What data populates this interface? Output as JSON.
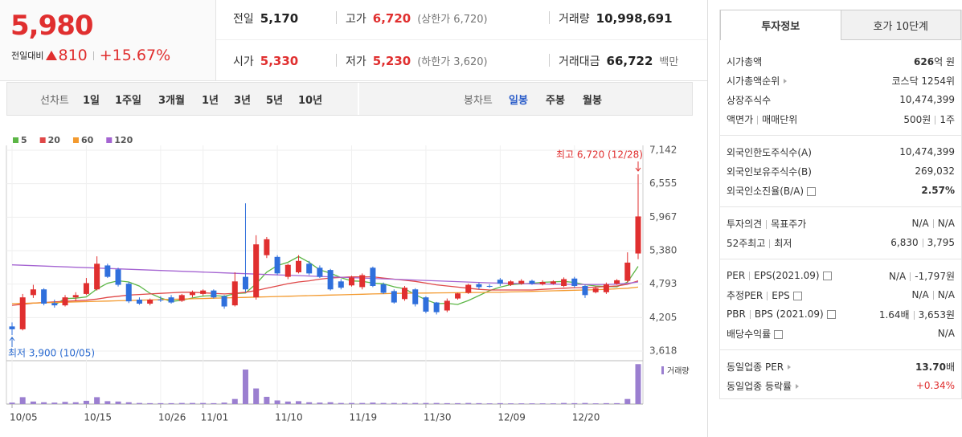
{
  "header": {
    "price": "5,980",
    "change_label": "전일대비",
    "change": "810",
    "change_pct": "+15.67%",
    "stats": [
      {
        "label": "전일",
        "value": "5,170"
      },
      {
        "label": "고가",
        "value": "6,720",
        "note": "(상한가 6,720)",
        "color": "red"
      },
      {
        "label": "거래량",
        "value": "10,998,691"
      },
      {
        "label": "시가",
        "value": "5,330",
        "color": "red"
      },
      {
        "label": "저가",
        "value": "5,230",
        "note": "(하한가 3,620)",
        "color": "red"
      },
      {
        "label": "거래대금",
        "value": "66,722",
        "note": "백만"
      }
    ]
  },
  "toolbar": {
    "line_label": "선차트",
    "periods": [
      "1일",
      "1주일",
      "3개월",
      "1년",
      "3년",
      "5년",
      "10년"
    ],
    "candle_label": "봉차트",
    "intervals": [
      "일봉",
      "주봉",
      "월봉"
    ],
    "active_interval": 0
  },
  "panel": {
    "tabs": [
      "투자정보",
      "호가 10단계"
    ],
    "active_tab": 0,
    "groups": [
      [
        {
          "label": [
            "시가총액"
          ],
          "value": [
            "626"
          ],
          "unit": "억 원",
          "bold": true
        },
        {
          "label": [
            "시가총액순위"
          ],
          "arrow": true,
          "value": [
            "코스닥 1254위"
          ]
        },
        {
          "label": [
            "상장주식수"
          ],
          "value": [
            "10,474,399"
          ]
        },
        {
          "label": [
            "액면가",
            "매매단위"
          ],
          "value": [
            "500원",
            "1주"
          ]
        }
      ],
      [
        {
          "label": [
            "외국인한도주식수(A)"
          ],
          "value": [
            "10,474,399"
          ]
        },
        {
          "label": [
            "외국인보유주식수(B)"
          ],
          "value": [
            "269,032"
          ]
        },
        {
          "label": [
            "외국인소진율(B/A)"
          ],
          "help": true,
          "value": [
            "2.57%"
          ],
          "bold": true
        }
      ],
      [
        {
          "label": [
            "투자의견",
            "목표주가"
          ],
          "value": [
            "N/A",
            "N/A"
          ]
        },
        {
          "label": [
            "52주최고",
            "최저"
          ],
          "value": [
            "6,830",
            "3,795"
          ]
        }
      ],
      [
        {
          "label": [
            "PER",
            "EPS(2021.09)"
          ],
          "help": true,
          "value": [
            "N/A",
            "-1,797원"
          ]
        },
        {
          "label": [
            "추정PER",
            "EPS"
          ],
          "help": true,
          "value": [
            "N/A",
            "N/A"
          ]
        },
        {
          "label": [
            "PBR",
            "BPS (2021.09)"
          ],
          "help": true,
          "value": [
            "1.64배",
            "3,653원"
          ]
        },
        {
          "label": [
            "배당수익률"
          ],
          "help": true,
          "value": [
            "N/A"
          ]
        }
      ],
      [
        {
          "label": [
            "동일업종 PER"
          ],
          "arrow": true,
          "value": [
            "13.70"
          ],
          "unit": "배",
          "bold": true
        },
        {
          "label": [
            "동일업종 등락률"
          ],
          "arrow": true,
          "value": [
            "+0.34%"
          ],
          "color": "red"
        }
      ]
    ]
  },
  "chart_data": {
    "type": "candlestick",
    "categories": [
      "10/05",
      null,
      null,
      null,
      null,
      null,
      null,
      "10/15",
      null,
      null,
      null,
      null,
      null,
      null,
      "10/26",
      null,
      null,
      null,
      "11/01",
      null,
      null,
      null,
      null,
      null,
      null,
      "11/10",
      null,
      null,
      null,
      null,
      null,
      null,
      "11/19",
      null,
      null,
      null,
      null,
      null,
      null,
      "11/30",
      null,
      null,
      null,
      null,
      null,
      null,
      "12/09",
      null,
      null,
      null,
      null,
      null,
      null,
      "12/20",
      null,
      null,
      null,
      null,
      null,
      null
    ],
    "open": [
      4050,
      4000,
      4600,
      4700,
      4460,
      4420,
      4560,
      4620,
      4700,
      5120,
      5050,
      4800,
      4520,
      4450,
      4520,
      4560,
      4500,
      4600,
      4620,
      4680,
      4580,
      4420,
      4920,
      4560,
      5300,
      5270,
      4920,
      5000,
      5150,
      5080,
      5040,
      4840,
      4770,
      4740,
      5080,
      4790,
      4670,
      4530,
      4700,
      4560,
      4470,
      4330,
      4540,
      4640,
      4790,
      4760,
      4870,
      4780,
      4800,
      4850,
      4790,
      4800,
      4760,
      4890,
      4760,
      4650,
      4650,
      4800,
      4850,
      5330
    ],
    "high": [
      4120,
      4620,
      4780,
      4720,
      4520,
      4600,
      4650,
      4900,
      5280,
      5150,
      5080,
      4830,
      4560,
      4540,
      4580,
      4600,
      4620,
      4680,
      4700,
      4700,
      4600,
      5000,
      6210,
      5650,
      5620,
      5300,
      5150,
      5300,
      5200,
      5120,
      5060,
      4880,
      4940,
      4980,
      5100,
      4820,
      4700,
      4760,
      4720,
      4580,
      4480,
      4540,
      4640,
      4800,
      4820,
      4790,
      4900,
      4860,
      4880,
      4870,
      4860,
      4860,
      4910,
      4920,
      4780,
      4750,
      4820,
      4880,
      5350,
      6720
    ],
    "low": [
      3900,
      3980,
      4550,
      4420,
      4380,
      4400,
      4500,
      4600,
      4680,
      4900,
      4750,
      4460,
      4430,
      4420,
      4480,
      4450,
      4480,
      4560,
      4590,
      4540,
      4360,
      4400,
      4650,
      4520,
      5250,
      4950,
      4880,
      4980,
      4950,
      4900,
      4680,
      4700,
      4750,
      4700,
      4740,
      4620,
      4450,
      4500,
      4400,
      4280,
      4260,
      4300,
      4520,
      4620,
      4700,
      4730,
      4760,
      4760,
      4780,
      4780,
      4770,
      4780,
      4740,
      4730,
      4550,
      4630,
      4620,
      4780,
      4820,
      5230
    ],
    "close": [
      4000,
      4560,
      4700,
      4450,
      4420,
      4560,
      4600,
      4810,
      5150,
      4920,
      4780,
      4490,
      4450,
      4520,
      4510,
      4470,
      4600,
      4650,
      4680,
      4560,
      4400,
      4840,
      4700,
      5490,
      5580,
      4980,
      5130,
      5200,
      4980,
      4920,
      4700,
      4730,
      4910,
      4950,
      4760,
      4640,
      4470,
      4730,
      4440,
      4310,
      4300,
      4500,
      4630,
      4780,
      4740,
      4750,
      4800,
      4840,
      4850,
      4800,
      4830,
      4840,
      4880,
      4760,
      4600,
      4720,
      4790,
      4860,
      5170,
      5980
    ],
    "volume": [
      400000,
      1900000,
      700000,
      500000,
      400000,
      600000,
      500000,
      900000,
      1900000,
      800000,
      700000,
      500000,
      300000,
      250000,
      250000,
      250000,
      300000,
      300000,
      300000,
      250000,
      400000,
      1400000,
      9500000,
      4300000,
      2000000,
      1000000,
      700000,
      800000,
      500000,
      400000,
      500000,
      300000,
      300000,
      300000,
      400000,
      300000,
      300000,
      300000,
      300000,
      300000,
      300000,
      250000,
      250000,
      300000,
      250000,
      200000,
      250000,
      200000,
      200000,
      200000,
      200000,
      200000,
      300000,
      250000,
      300000,
      200000,
      250000,
      250000,
      1400000,
      10998691
    ],
    "moving_averages": [
      {
        "name": "5",
        "color": "#5cb646",
        "values": [
          null,
          null,
          null,
          null,
          4426,
          4538,
          4546,
          4568,
          4708,
          4808,
          4852,
          4830,
          4758,
          4632,
          4550,
          4488,
          4510,
          4550,
          4582,
          4592,
          4578,
          4626,
          4636,
          4798,
          5002,
          5118,
          5176,
          5276,
          5174,
          5042,
          4986,
          4906,
          4848,
          4842,
          4810,
          4798,
          4746,
          4710,
          4608,
          4518,
          4450,
          4456,
          4436,
          4504,
          4590,
          4680,
          4740,
          4782,
          4796,
          4808,
          4824,
          4832,
          4840,
          4822,
          4782,
          4760,
          4750,
          4746,
          4828,
          5104
        ]
      },
      {
        "name": "20",
        "color": "#e04848",
        "values": [
          4420,
          4440,
          4460,
          4470,
          4480,
          4490,
          4500,
          4510,
          4530,
          4560,
          4580,
          4600,
          4610,
          4620,
          4630,
          4640,
          4650,
          4650,
          4640,
          4630,
          4620,
          4630,
          4650,
          4680,
          4720,
          4760,
          4800,
          4830,
          4850,
          4880,
          4900,
          4910,
          4920,
          4920,
          4920,
          4900,
          4880,
          4860,
          4840,
          4810,
          4780,
          4760,
          4740,
          4720,
          4700,
          4690,
          4690,
          4690,
          4690,
          4690,
          4700,
          4710,
          4720,
          4730,
          4730,
          4740,
          4750,
          4760,
          4790,
          4850
        ]
      },
      {
        "name": "60",
        "color": "#f39a2f",
        "values": [
          4450,
          4455,
          4460,
          4465,
          4470,
          4475,
          4480,
          4485,
          4490,
          4495,
          4500,
          4505,
          4510,
          4515,
          4520,
          4525,
          4530,
          4535,
          4540,
          4545,
          4550,
          4555,
          4560,
          4565,
          4570,
          4575,
          4580,
          4585,
          4590,
          4595,
          4600,
          4605,
          4610,
          4615,
          4620,
          4625,
          4630,
          4632,
          4634,
          4636,
          4638,
          4640,
          4642,
          4644,
          4646,
          4648,
          4650,
          4655,
          4660,
          4665,
          4670,
          4675,
          4680,
          4685,
          4690,
          4695,
          4700,
          4710,
          4720,
          4740
        ]
      },
      {
        "name": "120",
        "color": "#a565d2",
        "values": [
          5130,
          5123,
          5116,
          5109,
          5102,
          5095,
          5088,
          5081,
          5074,
          5067,
          5060,
          5053,
          5046,
          5039,
          5032,
          5025,
          5018,
          5011,
          5004,
          4997,
          4990,
          4983,
          4976,
          4969,
          4962,
          4955,
          4948,
          4941,
          4934,
          4927,
          4920,
          4913,
          4906,
          4899,
          4892,
          4885,
          4878,
          4871,
          4864,
          4857,
          4850,
          4843,
          4836,
          4829,
          4822,
          4815,
          4810,
          4806,
          4802,
          4798,
          4795,
          4792,
          4790,
          4788,
          4786,
          4785,
          4786,
          4792,
          4805,
          4830
        ]
      }
    ],
    "ylim": [
      3618,
      7142
    ],
    "yticks": [
      {
        "value": 3618,
        "label": "3,618"
      },
      {
        "value": 4205,
        "label": "4,205"
      },
      {
        "value": 4793,
        "label": "4,793"
      },
      {
        "value": 5380,
        "label": "5,380"
      },
      {
        "value": 5967,
        "label": "5,967"
      },
      {
        "value": 6555,
        "label": "6,555"
      },
      {
        "value": 7142,
        "label": "7,142"
      }
    ],
    "grid": true,
    "up_color": "#e02f2f",
    "down_color": "#2f6fdc",
    "volume_label": "거래량",
    "volume_color": "#9b7fd0",
    "volume_ylim": [
      0,
      11500000
    ],
    "annotations": [
      {
        "text": "최고 6,720 (12/28)",
        "index": 59,
        "value": 6720,
        "color": "#e02f2f",
        "position": "above"
      },
      {
        "text": "최저 3,900 (10/05)",
        "index": 0,
        "value": 3900,
        "color": "#2a6ad0",
        "position": "below"
      }
    ]
  }
}
